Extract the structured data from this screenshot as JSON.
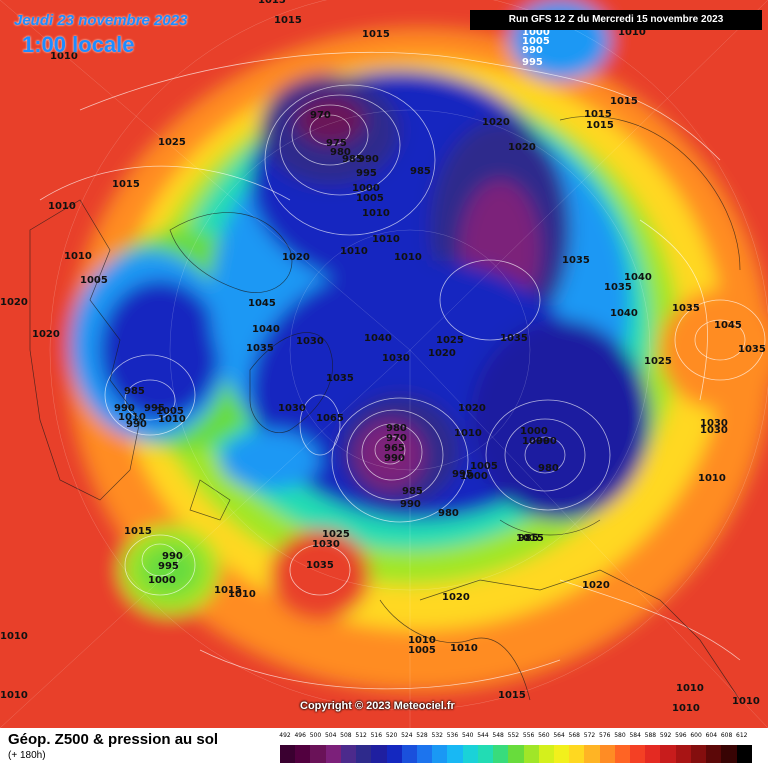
{
  "header": {
    "date_line": "Jeudi 23 novembre 2023",
    "time_line": "1:00 locale",
    "run_banner": "Run GFS 12 Z du Mercredi 15 novembre 2023"
  },
  "copyright": "Copyright © 2023 Meteociel.fr",
  "footer": {
    "title": "Géop. Z500 & pression au sol",
    "subtitle": "(+ 180h)"
  },
  "colors": {
    "background": "#e8412a",
    "footer_background": "#ffffff",
    "banner_background": "#000000",
    "title_text": "#1e8cff",
    "scale": [
      "#3a0030",
      "#52003f",
      "#6a1258",
      "#7c207a",
      "#4c2a8c",
      "#2e2a8c",
      "#1f1fa0",
      "#1428c0",
      "#1a50dc",
      "#1c74ee",
      "#1a98f4",
      "#18b8f4",
      "#1ad2d8",
      "#22dcb4",
      "#38dc7c",
      "#68dc3c",
      "#a0e628",
      "#d4f01c",
      "#f2f01c",
      "#ffd820",
      "#ffb424",
      "#ff8c24",
      "#ff6424",
      "#f44024",
      "#e42a22",
      "#c81c1c",
      "#a81414",
      "#840e0e",
      "#5c0808",
      "#380404",
      "#000000"
    ]
  },
  "scale_ticks": [
    "492",
    "496",
    "500",
    "504",
    "508",
    "512",
    "516",
    "520",
    "524",
    "528",
    "532",
    "536",
    "540",
    "544",
    "548",
    "552",
    "556",
    "560",
    "564",
    "568",
    "572",
    "576",
    "580",
    "584",
    "588",
    "592",
    "596",
    "600",
    "604",
    "608",
    "612"
  ],
  "isobar_labels": [
    "1015",
    "1015",
    "1015",
    "1010",
    "1010",
    "970",
    "975",
    "980",
    "985",
    "990",
    "995",
    "1000",
    "1005",
    "1010",
    "985",
    "1015",
    "1015",
    "1015",
    "1020",
    "1020",
    "1025",
    "1015",
    "1010",
    "1010",
    "1010",
    "1005",
    "1020",
    "1020",
    "1010",
    "1010",
    "1035",
    "1040",
    "1035",
    "1040",
    "1035",
    "1045",
    "1040",
    "1035",
    "1030",
    "1040",
    "1030",
    "1020",
    "1025",
    "1035",
    "1035",
    "1025",
    "1020",
    "1010",
    "985",
    "990",
    "995",
    "990",
    "1005",
    "1010",
    "1030",
    "1065",
    "1020",
    "980",
    "970",
    "965",
    "990",
    "995",
    "1000",
    "985",
    "990",
    "980",
    "1005",
    "1000",
    "1010",
    "1000",
    "990",
    "980",
    "985",
    "1015",
    "1010",
    "1030",
    "1015",
    "1025",
    "1030",
    "1035",
    "990",
    "995",
    "1000",
    "1015",
    "1010",
    "1020",
    "1020",
    "1010",
    "1005",
    "1010",
    "1010",
    "1010",
    "1010",
    "1015",
    "1045",
    "1035",
    "1030",
    "1010",
    "1010",
    "1000",
    "1005",
    "990",
    "995",
    "985"
  ]
}
